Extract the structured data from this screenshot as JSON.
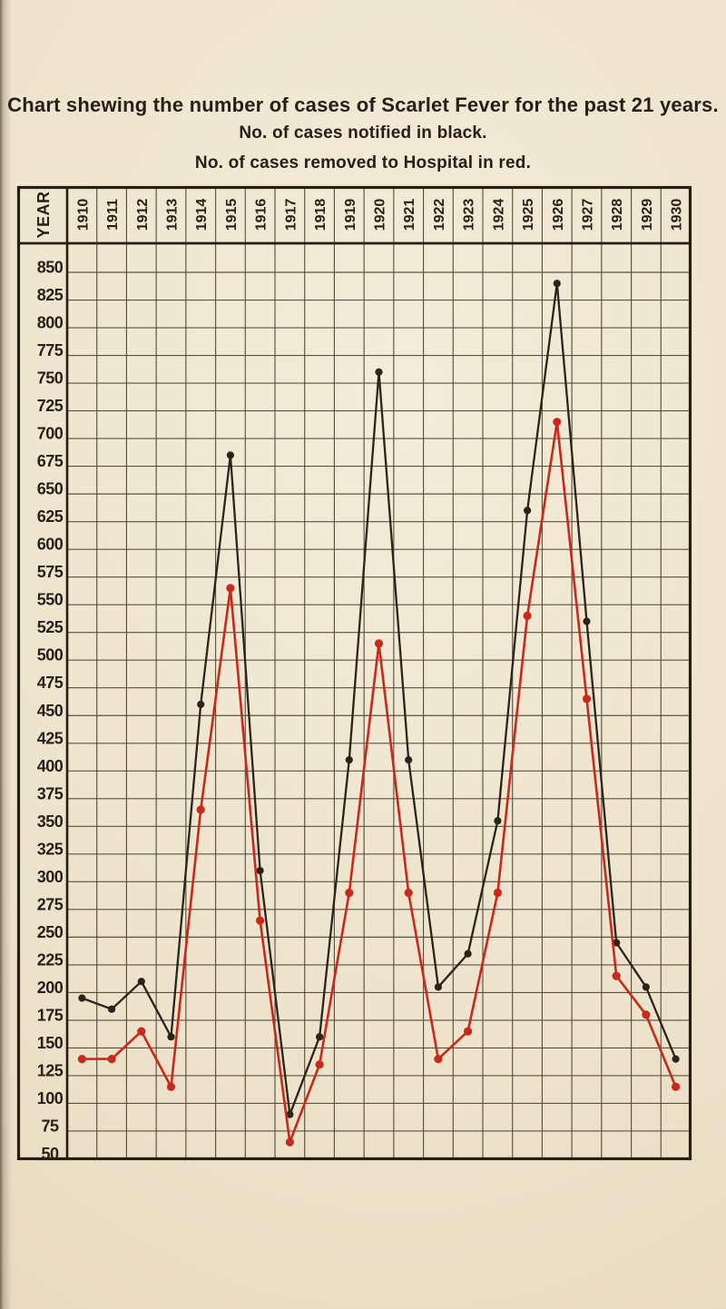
{
  "page": {
    "title": "Chart shewing the number of cases of Scarlet Fever for the past 21 years.",
    "subtitle_notified": "No. of cases notified in black.",
    "subtitle_hospital": "No. of cases removed to Hospital in red."
  },
  "chart_data": {
    "type": "line",
    "title": "Chart shewing the number of cases of Scarlet Fever for the past 21 years.",
    "year_header_label": "YEAR",
    "categories": [
      "1910",
      "1911",
      "1912",
      "1913",
      "1914",
      "1915",
      "1916",
      "1917",
      "1918",
      "1919",
      "1920",
      "1921",
      "1922",
      "1923",
      "1924",
      "1925",
      "1926",
      "1927",
      "1928",
      "1929",
      "1930"
    ],
    "series": [
      {
        "name": "No. of cases notified",
        "color": "#2a241b",
        "values": [
          195,
          185,
          210,
          160,
          460,
          685,
          310,
          90,
          160,
          410,
          760,
          410,
          205,
          235,
          355,
          635,
          840,
          535,
          245,
          205,
          140
        ]
      },
      {
        "name": "No. of cases removed to Hospital",
        "color": "#c8291b",
        "values": [
          140,
          140,
          165,
          115,
          365,
          565,
          265,
          65,
          135,
          290,
          515,
          290,
          140,
          165,
          290,
          540,
          715,
          465,
          215,
          180,
          115
        ]
      }
    ],
    "ylim": [
      50,
      850
    ],
    "ytick_step": 25,
    "grid": true,
    "legend_position": "text lines above chart",
    "ink_color": "#2b2419",
    "paper_color": "#eee3cc"
  }
}
